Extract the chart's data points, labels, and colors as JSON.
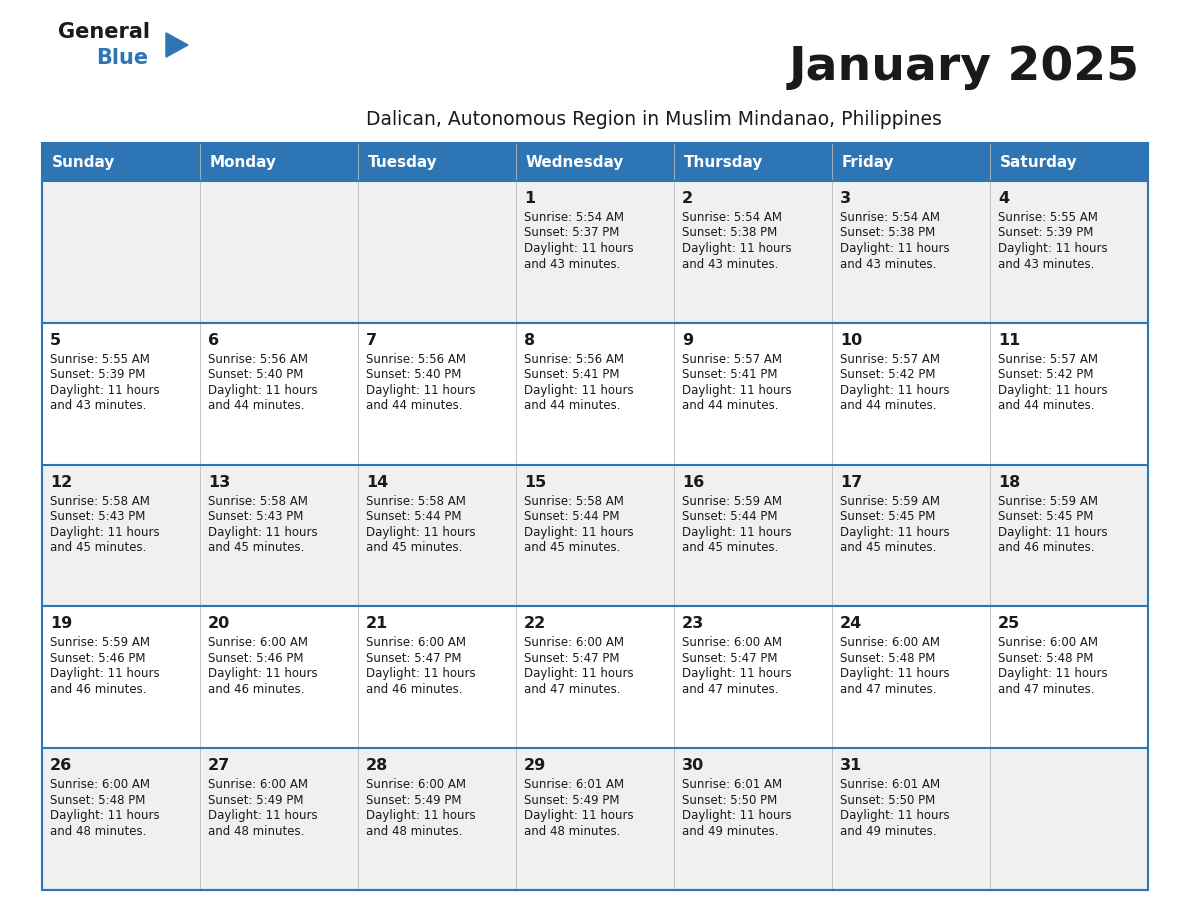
{
  "title": "January 2025",
  "subtitle": "Dalican, Autonomous Region in Muslim Mindanao, Philippines",
  "header_bg_color": "#2e75b6",
  "header_text_color": "#ffffff",
  "row_bg_even": "#f0f0f0",
  "row_bg_odd": "#ffffff",
  "separator_color": "#2e75b6",
  "day_headers": [
    "Sunday",
    "Monday",
    "Tuesday",
    "Wednesday",
    "Thursday",
    "Friday",
    "Saturday"
  ],
  "calendar": [
    [
      {
        "day": null,
        "sunrise": null,
        "sunset": null,
        "daylight": null
      },
      {
        "day": null,
        "sunrise": null,
        "sunset": null,
        "daylight": null
      },
      {
        "day": null,
        "sunrise": null,
        "sunset": null,
        "daylight": null
      },
      {
        "day": 1,
        "sunrise": "5:54 AM",
        "sunset": "5:37 PM",
        "daylight": "11 hours\nand 43 minutes."
      },
      {
        "day": 2,
        "sunrise": "5:54 AM",
        "sunset": "5:38 PM",
        "daylight": "11 hours\nand 43 minutes."
      },
      {
        "day": 3,
        "sunrise": "5:54 AM",
        "sunset": "5:38 PM",
        "daylight": "11 hours\nand 43 minutes."
      },
      {
        "day": 4,
        "sunrise": "5:55 AM",
        "sunset": "5:39 PM",
        "daylight": "11 hours\nand 43 minutes."
      }
    ],
    [
      {
        "day": 5,
        "sunrise": "5:55 AM",
        "sunset": "5:39 PM",
        "daylight": "11 hours\nand 43 minutes."
      },
      {
        "day": 6,
        "sunrise": "5:56 AM",
        "sunset": "5:40 PM",
        "daylight": "11 hours\nand 44 minutes."
      },
      {
        "day": 7,
        "sunrise": "5:56 AM",
        "sunset": "5:40 PM",
        "daylight": "11 hours\nand 44 minutes."
      },
      {
        "day": 8,
        "sunrise": "5:56 AM",
        "sunset": "5:41 PM",
        "daylight": "11 hours\nand 44 minutes."
      },
      {
        "day": 9,
        "sunrise": "5:57 AM",
        "sunset": "5:41 PM",
        "daylight": "11 hours\nand 44 minutes."
      },
      {
        "day": 10,
        "sunrise": "5:57 AM",
        "sunset": "5:42 PM",
        "daylight": "11 hours\nand 44 minutes."
      },
      {
        "day": 11,
        "sunrise": "5:57 AM",
        "sunset": "5:42 PM",
        "daylight": "11 hours\nand 44 minutes."
      }
    ],
    [
      {
        "day": 12,
        "sunrise": "5:58 AM",
        "sunset": "5:43 PM",
        "daylight": "11 hours\nand 45 minutes."
      },
      {
        "day": 13,
        "sunrise": "5:58 AM",
        "sunset": "5:43 PM",
        "daylight": "11 hours\nand 45 minutes."
      },
      {
        "day": 14,
        "sunrise": "5:58 AM",
        "sunset": "5:44 PM",
        "daylight": "11 hours\nand 45 minutes."
      },
      {
        "day": 15,
        "sunrise": "5:58 AM",
        "sunset": "5:44 PM",
        "daylight": "11 hours\nand 45 minutes."
      },
      {
        "day": 16,
        "sunrise": "5:59 AM",
        "sunset": "5:44 PM",
        "daylight": "11 hours\nand 45 minutes."
      },
      {
        "day": 17,
        "sunrise": "5:59 AM",
        "sunset": "5:45 PM",
        "daylight": "11 hours\nand 45 minutes."
      },
      {
        "day": 18,
        "sunrise": "5:59 AM",
        "sunset": "5:45 PM",
        "daylight": "11 hours\nand 46 minutes."
      }
    ],
    [
      {
        "day": 19,
        "sunrise": "5:59 AM",
        "sunset": "5:46 PM",
        "daylight": "11 hours\nand 46 minutes."
      },
      {
        "day": 20,
        "sunrise": "6:00 AM",
        "sunset": "5:46 PM",
        "daylight": "11 hours\nand 46 minutes."
      },
      {
        "day": 21,
        "sunrise": "6:00 AM",
        "sunset": "5:47 PM",
        "daylight": "11 hours\nand 46 minutes."
      },
      {
        "day": 22,
        "sunrise": "6:00 AM",
        "sunset": "5:47 PM",
        "daylight": "11 hours\nand 47 minutes."
      },
      {
        "day": 23,
        "sunrise": "6:00 AM",
        "sunset": "5:47 PM",
        "daylight": "11 hours\nand 47 minutes."
      },
      {
        "day": 24,
        "sunrise": "6:00 AM",
        "sunset": "5:48 PM",
        "daylight": "11 hours\nand 47 minutes."
      },
      {
        "day": 25,
        "sunrise": "6:00 AM",
        "sunset": "5:48 PM",
        "daylight": "11 hours\nand 47 minutes."
      }
    ],
    [
      {
        "day": 26,
        "sunrise": "6:00 AM",
        "sunset": "5:48 PM",
        "daylight": "11 hours\nand 48 minutes."
      },
      {
        "day": 27,
        "sunrise": "6:00 AM",
        "sunset": "5:49 PM",
        "daylight": "11 hours\nand 48 minutes."
      },
      {
        "day": 28,
        "sunrise": "6:00 AM",
        "sunset": "5:49 PM",
        "daylight": "11 hours\nand 48 minutes."
      },
      {
        "day": 29,
        "sunrise": "6:01 AM",
        "sunset": "5:49 PM",
        "daylight": "11 hours\nand 48 minutes."
      },
      {
        "day": 30,
        "sunrise": "6:01 AM",
        "sunset": "5:50 PM",
        "daylight": "11 hours\nand 49 minutes."
      },
      {
        "day": 31,
        "sunrise": "6:01 AM",
        "sunset": "5:50 PM",
        "daylight": "11 hours\nand 49 minutes."
      },
      {
        "day": null,
        "sunrise": null,
        "sunset": null,
        "daylight": null
      }
    ]
  ],
  "logo_color_general": "#1a1a1a",
  "logo_color_blue": "#2e75b6",
  "logo_triangle_color": "#2e75b6",
  "figwidth": 11.88,
  "figheight": 9.18,
  "dpi": 100
}
